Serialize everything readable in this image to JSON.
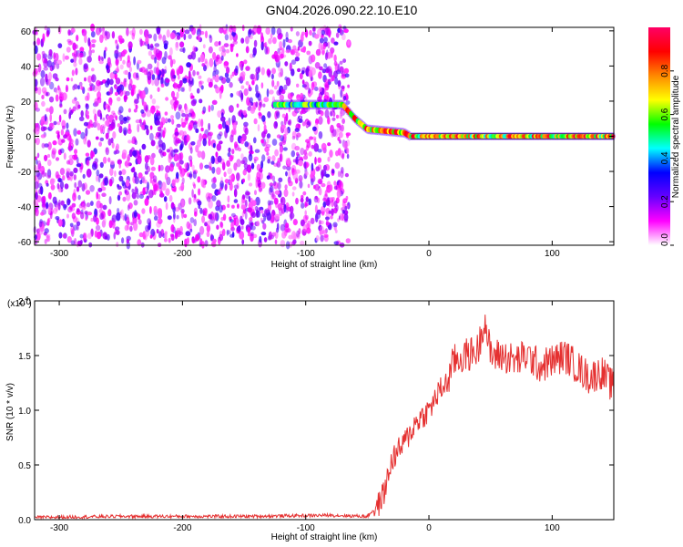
{
  "chart_data": [
    {
      "type": "heatmap",
      "title": "GN04.2026.090.22.10.E10",
      "xlabel": "Height of straight line (km)",
      "ylabel": "Frequency (Hz)",
      "xlim": [
        -320,
        150
      ],
      "ylim": [
        -62,
        62
      ],
      "x_ticks": [
        -300,
        -200,
        -100,
        0,
        100
      ],
      "x_tick_labels": [
        "-300",
        "-200",
        "-100",
        "0",
        "100"
      ],
      "y_ticks": [
        60,
        40,
        20,
        0,
        -20,
        -40,
        -60
      ],
      "y_tick_labels": [
        "60",
        "40",
        "20",
        "0",
        "-20",
        "-40",
        "-60"
      ],
      "noise_region_x": [
        -320,
        -65
      ],
      "tone_track": [
        {
          "x": -125,
          "freq": 18
        },
        {
          "x": -70,
          "freq": 18
        },
        {
          "x": -60,
          "freq": 10
        },
        {
          "x": -50,
          "freq": 4
        },
        {
          "x": -20,
          "freq": 2
        },
        {
          "x": -15,
          "freq": 0
        },
        {
          "x": 150,
          "freq": 0
        }
      ],
      "colorbar": {
        "label": "Normalized spectral amplitude",
        "range": [
          0.0,
          1.0
        ],
        "ticks": [
          0.0,
          0.2,
          0.4,
          0.6,
          0.8
        ],
        "tick_labels": [
          "0.0",
          "0.2",
          "0.4",
          "0.6",
          "0.8"
        ],
        "colors": [
          "#ffffff",
          "#ff00ff",
          "#6600ff",
          "#0000ff",
          "#00ffff",
          "#00ff00",
          "#ffff00",
          "#ff8800",
          "#ff0000",
          "#ff0066"
        ]
      }
    },
    {
      "type": "line",
      "title": "",
      "xlabel": "Height of straight line (km)",
      "ylabel": "SNR (10 * v/v)",
      "y_multiplier": "(x10",
      "y_multiplier_exp": "4",
      "y_multiplier_close": ")",
      "xlim": [
        -320,
        150
      ],
      "ylim": [
        0,
        2.0
      ],
      "x_ticks": [
        -300,
        -200,
        -100,
        0,
        100
      ],
      "x_tick_labels": [
        "-300",
        "-200",
        "-100",
        "0",
        "100"
      ],
      "y_ticks": [
        2.0,
        1.5,
        1.0,
        0.5,
        0.0
      ],
      "y_tick_labels": [
        "2.0",
        "1.5",
        "1.0",
        "0.5",
        "0.0"
      ],
      "color": "#e53030",
      "series": [
        {
          "name": "SNR",
          "x": [
            -320,
            -250,
            -150,
            -80,
            -50,
            -40,
            -35,
            -30,
            -20,
            -10,
            0,
            10,
            15,
            20,
            30,
            40,
            45,
            50,
            60,
            70,
            80,
            90,
            100,
            110,
            120,
            130,
            140,
            150
          ],
          "values": [
            0.02,
            0.03,
            0.03,
            0.04,
            0.03,
            0.15,
            0.3,
            0.55,
            0.7,
            0.9,
            1.0,
            1.2,
            1.25,
            1.45,
            1.5,
            1.55,
            1.85,
            1.5,
            1.5,
            1.45,
            1.5,
            1.4,
            1.45,
            1.5,
            1.4,
            1.3,
            1.35,
            1.2
          ]
        }
      ]
    }
  ]
}
